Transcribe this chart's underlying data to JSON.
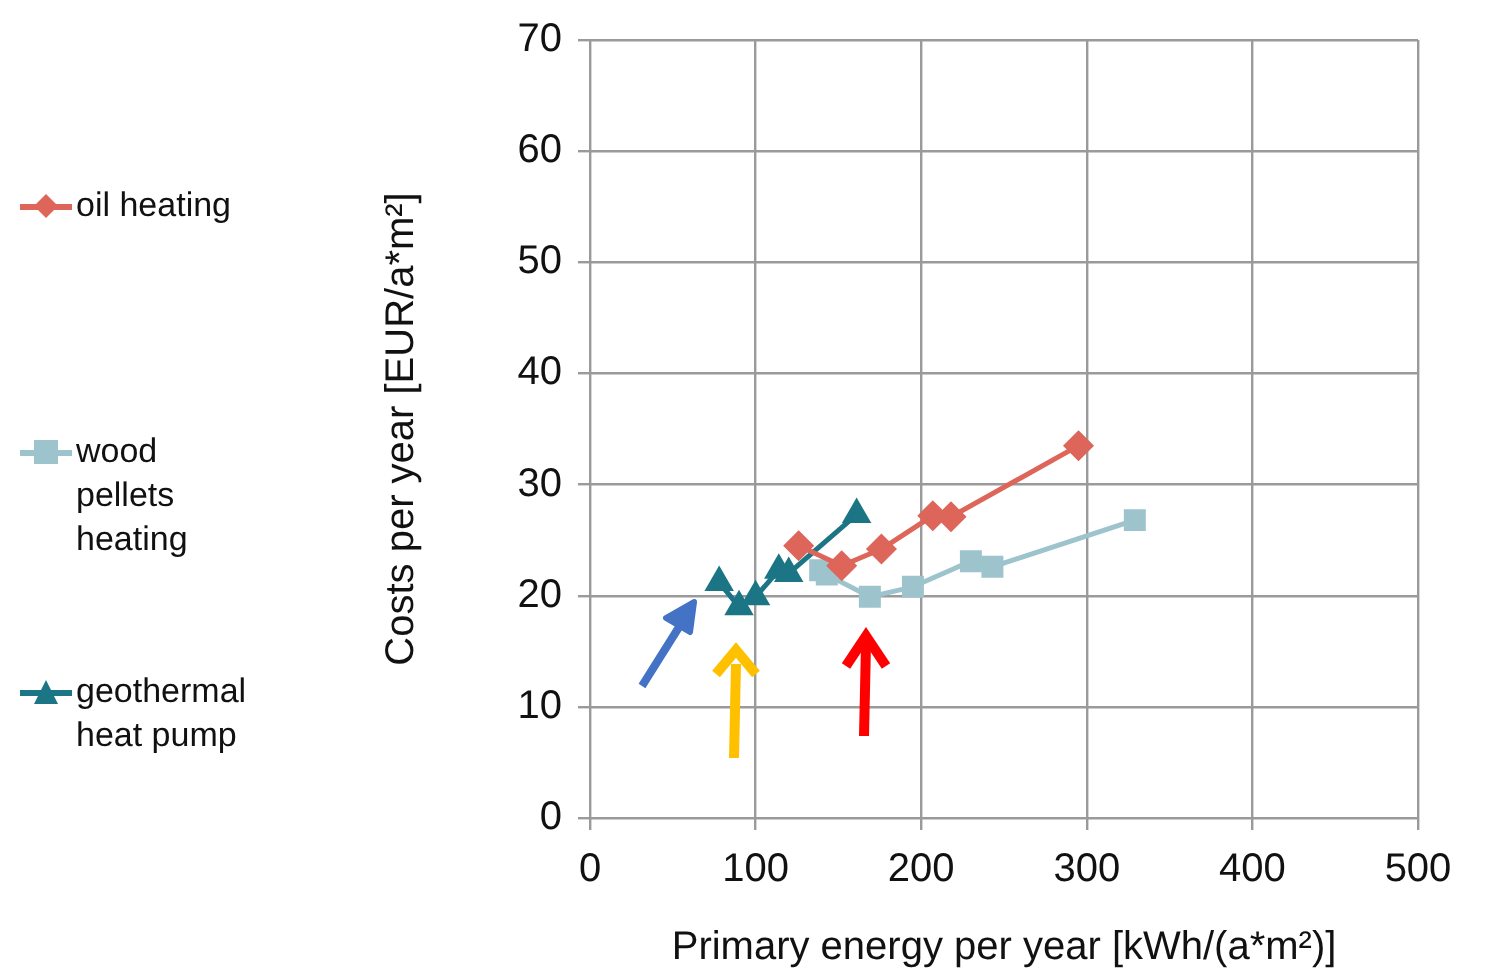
{
  "chart_data": {
    "type": "line",
    "xlabel": "Primary energy per year [kWh/(a*m²)]",
    "ylabel": "Costs per year [EUR/a*m²]",
    "xlim": [
      0,
      500
    ],
    "xticks": [
      0,
      100,
      200,
      300,
      400,
      500
    ],
    "ylim": [
      0,
      70
    ],
    "yticks": [
      0,
      10,
      20,
      30,
      40,
      50,
      60,
      70
    ],
    "grid": true,
    "legend": "left",
    "series": [
      {
        "name": "oil heating",
        "color": "#dd6559",
        "marker": "diamond",
        "x": [
          126,
          152,
          176,
          207,
          218,
          295
        ],
        "values": [
          24.5,
          22.7,
          24.2,
          27.2,
          27.1,
          33.5
        ]
      },
      {
        "name": "wood\npellets\nheating",
        "color": "#9dc3cc",
        "marker": "square",
        "x": [
          139,
          143,
          169,
          195,
          230,
          243,
          329
        ],
        "values": [
          22.3,
          21.9,
          19.9,
          20.8,
          23.1,
          22.6,
          26.8
        ]
      },
      {
        "name": "geothermal\nheat pump",
        "color": "#1b7584",
        "marker": "triangle",
        "x": [
          78,
          90,
          100,
          114,
          120,
          161
        ],
        "values": [
          21.2,
          19.0,
          19.9,
          22.3,
          22.0,
          27.3
        ]
      }
    ]
  }
}
